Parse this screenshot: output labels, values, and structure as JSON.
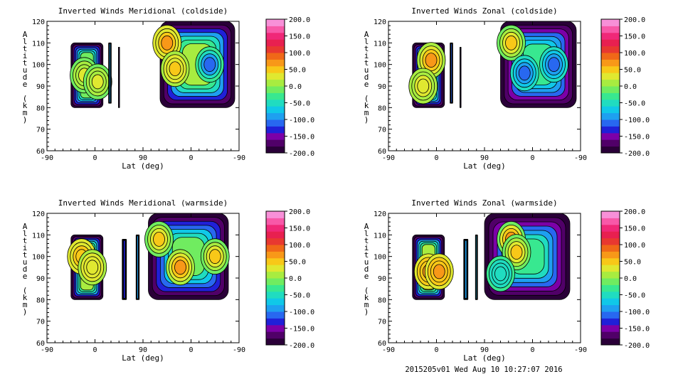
{
  "footer": "2015205v01 Wed Aug 10 10:27:07 2016",
  "colorbar": {
    "labels": [
      "200.0",
      "150.0",
      "100.0",
      "50.0",
      "0.0",
      "-50.0",
      "-100.0",
      "-150.0",
      "-200.0"
    ],
    "colors": [
      "#2a0038",
      "#500068",
      "#7c00a8",
      "#2020d8",
      "#2868f0",
      "#1ea0f0",
      "#10c8e8",
      "#20dcc0",
      "#38e890",
      "#70ec60",
      "#a8ec40",
      "#e0e830",
      "#f8c818",
      "#f89818",
      "#f06818",
      "#e83830",
      "#e82050",
      "#f02878",
      "#f858a8",
      "#f890d8"
    ],
    "range": [
      -200,
      200
    ]
  },
  "chart_data": [
    {
      "type": "heatmap",
      "title": "Inverted Winds Meridional (coldside)",
      "xlabel": "Lat (deg)",
      "ylabel": "Altitude (km)",
      "xticks": [
        "-90",
        "0",
        "90",
        "0",
        "-90"
      ],
      "yticks": [
        "60",
        "70",
        "80",
        "90",
        "100",
        "110",
        "120"
      ],
      "ylim": [
        60,
        120
      ],
      "regions": [
        {
          "x": [
            -45,
            15
          ],
          "y": [
            80,
            110
          ],
          "mean": -20,
          "extremes": [
            {
              "x": -20,
              "y": 95,
              "v": 30
            },
            {
              "x": 5,
              "y": 92,
              "v": 20
            }
          ]
        },
        {
          "x": 28,
          "width": 5,
          "y": [
            82,
            110
          ],
          "mean": -90
        },
        {
          "x": 45,
          "width": 2,
          "y": [
            80,
            108
          ],
          "mean": -150
        },
        {
          "x": 122,
          "x2": 262,
          "y": [
            80,
            120
          ],
          "mean": 10,
          "extremes": [
            {
              "x": 135,
              "y": 110,
              "v": 60
            },
            {
              "x": 150,
              "y": 98,
              "v": 40
            },
            {
              "x": 215,
              "y": 100,
              "v": -120
            }
          ]
        }
      ]
    },
    {
      "type": "heatmap",
      "title": "Inverted Winds Zonal (coldside)",
      "xlabel": "Lat (deg)",
      "ylabel": "Altitude (km)",
      "xticks": [
        "-90",
        "0",
        "90",
        "0",
        "-90"
      ],
      "yticks": [
        "60",
        "70",
        "80",
        "90",
        "100",
        "110",
        "120"
      ],
      "ylim": [
        60,
        120
      ],
      "regions": [
        {
          "x": [
            -45,
            15
          ],
          "y": [
            80,
            110
          ],
          "mean": -10,
          "extremes": [
            {
              "x": -10,
              "y": 102,
              "v": 60
            },
            {
              "x": -25,
              "y": 90,
              "v": 30
            }
          ]
        },
        {
          "x": 28,
          "width": 5,
          "y": [
            82,
            110
          ],
          "mean": -120
        },
        {
          "x": 45,
          "width": 2,
          "y": [
            80,
            108
          ],
          "mean": -150
        },
        {
          "x": 120,
          "x2": 262,
          "y": [
            80,
            120
          ],
          "mean": -40,
          "extremes": [
            {
              "x": 140,
              "y": 110,
              "v": 50
            },
            {
              "x": 165,
              "y": 96,
              "v": -110
            },
            {
              "x": 220,
              "y": 100,
              "v": -120
            }
          ]
        }
      ]
    },
    {
      "type": "heatmap",
      "title": "Inverted Winds Meridional (warmside)",
      "xlabel": "Lat (deg)",
      "ylabel": "Altitude (km)",
      "xticks": [
        "-90",
        "0",
        "90",
        "0",
        "-90"
      ],
      "yticks": [
        "60",
        "70",
        "80",
        "90",
        "100",
        "110",
        "120"
      ],
      "ylim": [
        60,
        120
      ],
      "regions": [
        {
          "x": [
            -45,
            15
          ],
          "y": [
            80,
            110
          ],
          "mean": 10,
          "extremes": [
            {
              "x": -25,
              "y": 100,
              "v": 50
            },
            {
              "x": -5,
              "y": 95,
              "v": 30
            }
          ]
        },
        {
          "x": 55,
          "width": 8,
          "y": [
            80,
            108
          ],
          "mean": -130
        },
        {
          "x": 80,
          "width": 6,
          "y": [
            80,
            110
          ],
          "mean": -100
        },
        {
          "x": 100,
          "x2": 250,
          "y": [
            80,
            120
          ],
          "mean": -20,
          "extremes": [
            {
              "x": 120,
              "y": 108,
              "v": 40
            },
            {
              "x": 160,
              "y": 95,
              "v": 60
            },
            {
              "x": 225,
              "y": 100,
              "v": 50
            }
          ]
        }
      ]
    },
    {
      "type": "heatmap",
      "title": "Inverted Winds Zonal (warmside)",
      "xlabel": "Lat (deg)",
      "ylabel": "Altitude (km)",
      "xticks": [
        "-90",
        "0",
        "90",
        "0",
        "-90"
      ],
      "yticks": [
        "60",
        "70",
        "80",
        "90",
        "100",
        "110",
        "120"
      ],
      "ylim": [
        60,
        120
      ],
      "regions": [
        {
          "x": [
            -45,
            15
          ],
          "y": [
            80,
            110
          ],
          "mean": 10,
          "extremes": [
            {
              "x": -15,
              "y": 93,
              "v": 70
            },
            {
              "x": 5,
              "y": 93,
              "v": 70
            }
          ]
        },
        {
          "x": 55,
          "width": 8,
          "y": [
            80,
            108
          ],
          "mean": -100
        },
        {
          "x": 75,
          "width": 4,
          "y": [
            80,
            110
          ],
          "mean": -80
        },
        {
          "x": 90,
          "x2": 250,
          "y": [
            80,
            120
          ],
          "mean": -30,
          "extremes": [
            {
              "x": 140,
              "y": 108,
              "v": 70
            },
            {
              "x": 150,
              "y": 102,
              "v": 50
            },
            {
              "x": 120,
              "y": 92,
              "v": -60
            }
          ]
        }
      ]
    }
  ]
}
